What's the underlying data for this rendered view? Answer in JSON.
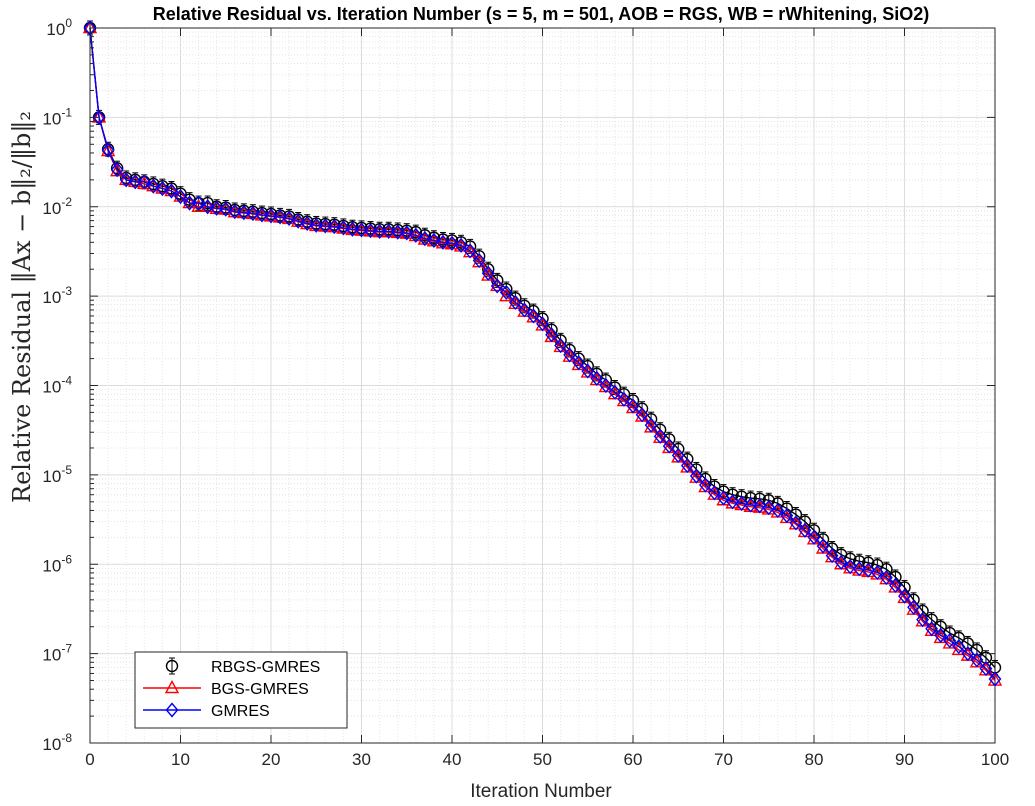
{
  "chart_data": {
    "type": "line",
    "title": "Relative Residual vs. Iteration Number (s = 5, m = 501, AOB = RGS, WB = rWhitening, SiO2)",
    "xlabel": "Iteration Number",
    "ylabel": "Relative Residual ‖Ax − b‖₂/‖b‖₂",
    "xlim": [
      0,
      100
    ],
    "ylim": [
      1e-08,
      1
    ],
    "yscale": "log",
    "grid": true,
    "minor_grid": true,
    "legend_position": "bottom-left",
    "x_ticks": [
      "0",
      "10",
      "20",
      "30",
      "40",
      "50",
      "60",
      "70",
      "80",
      "90",
      "100"
    ],
    "y_ticks": [
      {
        "base": "10",
        "exp": "-8"
      },
      {
        "base": "10",
        "exp": "-7"
      },
      {
        "base": "10",
        "exp": "-6"
      },
      {
        "base": "10",
        "exp": "-5"
      },
      {
        "base": "10",
        "exp": "-4"
      },
      {
        "base": "10",
        "exp": "-3"
      },
      {
        "base": "10",
        "exp": "-2"
      },
      {
        "base": "10",
        "exp": "-1"
      },
      {
        "base": "10",
        "exp": "0"
      }
    ],
    "x": [
      0,
      1,
      2,
      3,
      4,
      5,
      6,
      7,
      8,
      9,
      10,
      11,
      12,
      13,
      14,
      15,
      16,
      17,
      18,
      19,
      20,
      21,
      22,
      23,
      24,
      25,
      26,
      27,
      28,
      29,
      30,
      31,
      32,
      33,
      34,
      35,
      36,
      37,
      38,
      39,
      40,
      41,
      42,
      43,
      44,
      45,
      46,
      47,
      48,
      49,
      50,
      51,
      52,
      53,
      54,
      55,
      56,
      57,
      58,
      59,
      60,
      61,
      62,
      63,
      64,
      65,
      66,
      67,
      68,
      69,
      70,
      71,
      72,
      73,
      74,
      75,
      76,
      77,
      78,
      79,
      80,
      81,
      82,
      83,
      84,
      85,
      86,
      87,
      88,
      89,
      90,
      91,
      92,
      93,
      94,
      95,
      96,
      97,
      98,
      99,
      100
    ],
    "series": [
      {
        "name": "RBGS-GMRES",
        "color": "#000000",
        "marker": "circle",
        "values": [
          1.0,
          0.1,
          0.044,
          0.027,
          0.021,
          0.02,
          0.019,
          0.018,
          0.017,
          0.016,
          0.014,
          0.012,
          0.011,
          0.011,
          0.01,
          0.0098,
          0.0092,
          0.009,
          0.0088,
          0.0085,
          0.0083,
          0.008,
          0.0078,
          0.0072,
          0.0068,
          0.0065,
          0.0064,
          0.0063,
          0.0061,
          0.0059,
          0.0058,
          0.0057,
          0.0056,
          0.0056,
          0.0055,
          0.0054,
          0.0052,
          0.0048,
          0.0045,
          0.0043,
          0.0042,
          0.004,
          0.0036,
          0.0028,
          0.002,
          0.0015,
          0.0012,
          0.00095,
          0.00078,
          0.00068,
          0.00056,
          0.00042,
          0.00032,
          0.00025,
          0.0002,
          0.000165,
          0.000135,
          0.000115,
          9.5e-05,
          8e-05,
          6.8e-05,
          5.5e-05,
          4.2e-05,
          3.2e-05,
          2.5e-05,
          1.95e-05,
          1.5e-05,
          1.15e-05,
          9e-06,
          7.4e-06,
          6.5e-06,
          6e-06,
          5.7e-06,
          5.5e-06,
          5.4e-06,
          5.2e-06,
          4.8e-06,
          4.2e-06,
          3.6e-06,
          3e-06,
          2.4e-06,
          1.9e-06,
          1.5e-06,
          1.28e-06,
          1.15e-06,
          1.08e-06,
          1.04e-06,
          9.8e-07,
          8.8e-07,
          7.2e-07,
          5.5e-07,
          4e-07,
          3e-07,
          2.4e-07,
          2e-07,
          1.7e-07,
          1.5e-07,
          1.3e-07,
          1.1e-07,
          9e-08,
          7e-08
        ]
      },
      {
        "name": "BGS-GMRES",
        "color": "#ff0000",
        "marker": "triangle",
        "values": [
          1.0,
          0.1,
          0.042,
          0.025,
          0.02,
          0.019,
          0.018,
          0.017,
          0.016,
          0.015,
          0.013,
          0.011,
          0.01,
          0.01,
          0.0095,
          0.0093,
          0.0087,
          0.0085,
          0.0083,
          0.008,
          0.0078,
          0.0076,
          0.0073,
          0.0068,
          0.0064,
          0.0061,
          0.006,
          0.0059,
          0.0057,
          0.0055,
          0.0054,
          0.0053,
          0.0052,
          0.0052,
          0.0051,
          0.005,
          0.0047,
          0.0043,
          0.0041,
          0.0039,
          0.0038,
          0.0036,
          0.0031,
          0.0024,
          0.0017,
          0.0013,
          0.001,
          0.00082,
          0.00067,
          0.00058,
          0.00047,
          0.00035,
          0.00027,
          0.00021,
          0.00017,
          0.00014,
          0.000115,
          9.6e-05,
          8e-05,
          6.7e-05,
          5.6e-05,
          4.5e-05,
          3.4e-05,
          2.6e-05,
          2e-05,
          1.57e-05,
          1.21e-05,
          9.3e-06,
          7.3e-06,
          6e-06,
          5.2e-06,
          4.8e-06,
          4.6e-06,
          4.4e-06,
          4.3e-06,
          4.1e-06,
          3.8e-06,
          3.3e-06,
          2.8e-06,
          2.3e-06,
          1.9e-06,
          1.5e-06,
          1.2e-06,
          1e-06,
          9e-07,
          8.5e-07,
          8.2e-07,
          7.7e-07,
          6.8e-07,
          5.5e-07,
          4.2e-07,
          3.1e-07,
          2.3e-07,
          1.8e-07,
          1.5e-07,
          1.3e-07,
          1.1e-07,
          9.5e-08,
          8e-08,
          6.5e-08,
          5e-08
        ]
      },
      {
        "name": "GMRES",
        "color": "#0000ff",
        "marker": "diamond",
        "values": [
          1.0,
          0.1,
          0.043,
          0.026,
          0.02,
          0.019,
          0.019,
          0.017,
          0.016,
          0.015,
          0.013,
          0.011,
          0.011,
          0.01,
          0.0096,
          0.0094,
          0.0088,
          0.0086,
          0.0084,
          0.0081,
          0.0079,
          0.0077,
          0.0074,
          0.0069,
          0.0065,
          0.0062,
          0.0061,
          0.006,
          0.0058,
          0.0056,
          0.0055,
          0.0054,
          0.0053,
          0.0053,
          0.0052,
          0.0051,
          0.0048,
          0.0044,
          0.0042,
          0.004,
          0.0039,
          0.0037,
          0.0032,
          0.0025,
          0.0018,
          0.0013,
          0.0011,
          0.00085,
          0.0007,
          0.0006,
          0.00049,
          0.00037,
          0.00028,
          0.00022,
          0.00018,
          0.000145,
          0.00012,
          0.0001,
          8.4e-05,
          7e-05,
          5.9e-05,
          4.7e-05,
          3.6e-05,
          2.7e-05,
          2.1e-05,
          1.65e-05,
          1.27e-05,
          9.7e-06,
          7.7e-06,
          6.3e-06,
          5.5e-06,
          5e-06,
          4.8e-06,
          4.6e-06,
          4.5e-06,
          4.3e-06,
          4e-06,
          3.5e-06,
          2.9e-06,
          2.4e-06,
          2e-06,
          1.6e-06,
          1.25e-06,
          1.05e-06,
          9.4e-07,
          8.9e-07,
          8.6e-07,
          8.1e-07,
          7.1e-07,
          5.8e-07,
          4.4e-07,
          3.3e-07,
          2.4e-07,
          1.9e-07,
          1.6e-07,
          1.4e-07,
          1.2e-07,
          1e-07,
          8.5e-08,
          6.8e-08,
          5.2e-08
        ]
      }
    ]
  }
}
